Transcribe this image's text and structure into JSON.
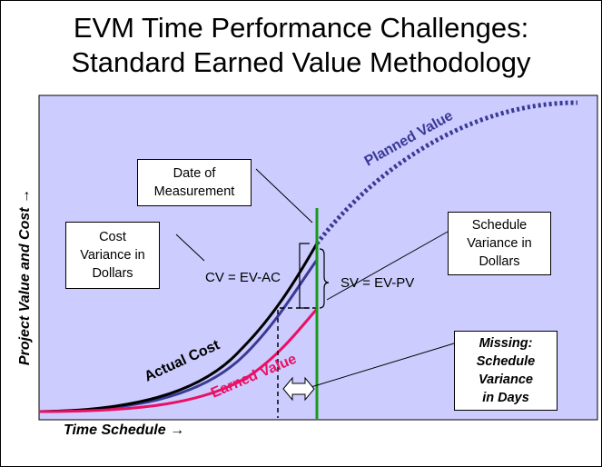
{
  "title": {
    "line1": "EVM Time Performance Challenges:",
    "line2": "Standard Earned Value Methodology"
  },
  "axes": {
    "y_label": "Project Value and Cost →",
    "x_label": "Time Schedule →"
  },
  "curves": {
    "planned_value": {
      "label": "Planned Value",
      "color": "#3a3a96"
    },
    "actual_cost": {
      "label": "Actual Cost",
      "color": "#000000"
    },
    "earned_value": {
      "label": "Earned Value",
      "color": "#ea1064"
    }
  },
  "boxes": {
    "date_of_measurement": [
      "Date of",
      "Measurement"
    ],
    "cost_variance": [
      "Cost",
      "Variance in",
      "Dollars"
    ],
    "schedule_variance_dollars": [
      "Schedule",
      "Variance in",
      "Dollars"
    ],
    "schedule_variance_days": [
      "Missing:",
      "Schedule",
      "Variance",
      "in Days"
    ]
  },
  "formulas": {
    "cv": "CV = EV-AC",
    "sv": "SV = EV-PV"
  },
  "colors": {
    "plot_background": "#ccccff",
    "measurement_line": "#1a9a1a"
  }
}
